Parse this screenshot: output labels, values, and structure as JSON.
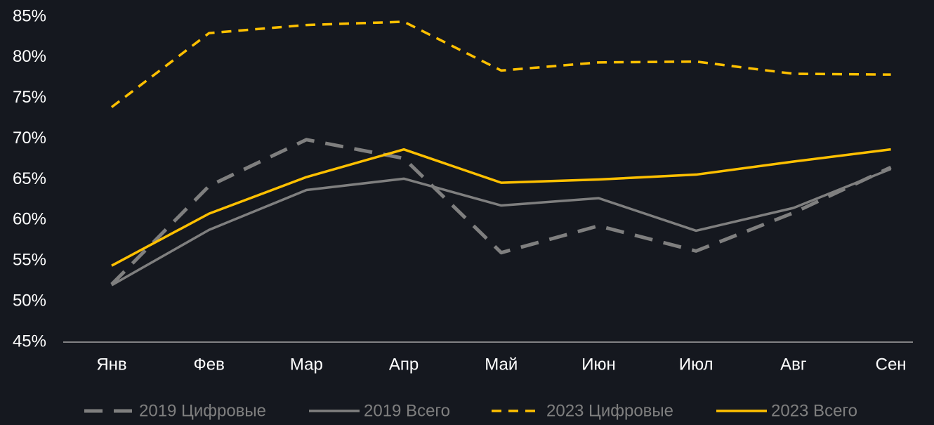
{
  "chart_data": {
    "type": "line",
    "categories": [
      "Янв",
      "Фев",
      "Мар",
      "Апр",
      "Май",
      "Июн",
      "Июл",
      "Авг",
      "Сен"
    ],
    "series": [
      {
        "name": "2019 Цифровые",
        "color": "#7f7f7f",
        "line_style": "long-dash",
        "values": [
          52.1,
          64.2,
          69.9,
          67.6,
          56.0,
          59.3,
          56.2,
          60.9,
          66.5
        ]
      },
      {
        "name": "2019 Всего",
        "color": "#7f7f7f",
        "line_style": "solid",
        "values": [
          52.0,
          58.8,
          63.7,
          65.1,
          61.8,
          62.7,
          58.7,
          61.5,
          66.3
        ]
      },
      {
        "name": "2023 Цифровые",
        "color": "#ffc000",
        "line_style": "short-dash",
        "values": [
          73.9,
          83.0,
          84.0,
          84.4,
          78.4,
          79.4,
          79.5,
          78.0,
          77.9
        ]
      },
      {
        "name": "2023 Всего",
        "color": "#ffc000",
        "line_style": "solid",
        "values": [
          54.4,
          60.8,
          65.3,
          68.7,
          64.6,
          65.0,
          65.6,
          67.2,
          68.7
        ]
      }
    ],
    "ylim": [
      45,
      85
    ],
    "yticks": [
      {
        "value": 45,
        "label": "45%"
      },
      {
        "value": 50,
        "label": "50%"
      },
      {
        "value": 55,
        "label": "55%"
      },
      {
        "value": 60,
        "label": "60%"
      },
      {
        "value": 65,
        "label": "65%"
      },
      {
        "value": 70,
        "label": "70%"
      },
      {
        "value": 75,
        "label": "75%"
      },
      {
        "value": 80,
        "label": "80%"
      },
      {
        "value": 85,
        "label": "85%"
      }
    ],
    "grid": false,
    "legend": "bottom"
  }
}
